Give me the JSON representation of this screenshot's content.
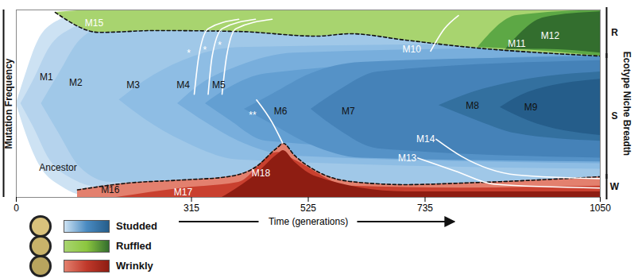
{
  "chart_data": {
    "type": "muller",
    "x_label": "Time (generations)",
    "y_label": "Mutation Frequency",
    "xlim": [
      0,
      1050
    ],
    "ylim": [
      0,
      1
    ],
    "xticks": [
      0,
      315,
      525,
      735,
      1050
    ],
    "tick_labels": "x",
    "legend": "bottom-left",
    "series": [
      {
        "name": "Studded",
        "color": "#4a8bc2",
        "layers": [
          {
            "label": "Ancestor",
            "color": "#cde2f3",
            "x": [
              0,
              15,
              40,
              80,
              140,
              1050
            ],
            "lower": [
              0.5,
              0.36,
              0.18,
              0.06,
              0,
              0
            ],
            "upper": [
              0.5,
              0.64,
              0.84,
              0.95,
              1,
              1
            ],
            "label_at": [
              75,
              0.16
            ],
            "label_color": "#111111"
          },
          {
            "label": "M1",
            "color": "#b5d3ed",
            "x": [
              8,
              30,
              60,
              100,
              160,
              1050
            ],
            "lower": [
              0.5,
              0.38,
              0.2,
              0.1,
              0.05,
              0.04
            ],
            "upper": [
              0.5,
              0.62,
              0.8,
              0.9,
              0.95,
              0.96
            ],
            "label_at": [
              54,
              0.64
            ],
            "label_color": "#111111"
          },
          {
            "label": "M2",
            "color": "#a0c8e8",
            "x": [
              45,
              75,
              115,
              170,
              1050
            ],
            "lower": [
              0.5,
              0.35,
              0.16,
              0.08,
              0.06
            ],
            "upper": [
              0.5,
              0.65,
              0.84,
              0.92,
              0.94
            ],
            "label_at": [
              107,
              0.61
            ],
            "label_color": "#111111"
          },
          {
            "label": "M3",
            "color": "#8ebde4",
            "x": [
              185,
              230,
              300,
              400,
              1050
            ],
            "lower": [
              0.52,
              0.42,
              0.3,
              0.2,
              0.15
            ],
            "upper": [
              0.52,
              0.62,
              0.73,
              0.8,
              0.82
            ],
            "label_at": [
              210,
              0.6
            ],
            "label_color": "#111111"
          },
          {
            "label": "M4",
            "color": "#78aedc",
            "x": [
              290,
              330,
              400,
              500,
              1050
            ],
            "lower": [
              0.5,
              0.42,
              0.3,
              0.22,
              0.18
            ],
            "upper": [
              0.5,
              0.6,
              0.7,
              0.77,
              0.8
            ],
            "label_at": [
              300,
              0.6
            ],
            "label_color": "#111111"
          },
          {
            "label": "M5",
            "color": "#639fd2",
            "x": [
              340,
              380,
              450,
              1050
            ],
            "lower": [
              0.5,
              0.42,
              0.3,
              0.22
            ],
            "upper": [
              0.5,
              0.58,
              0.66,
              0.76
            ],
            "label_at": [
              364,
              0.6
            ],
            "label_color": "#111111"
          },
          {
            "label": "M6",
            "color": "#5592c7",
            "x": [
              410,
              460,
              530,
              620,
              1050
            ],
            "lower": [
              0.47,
              0.39,
              0.28,
              0.21,
              0.19
            ],
            "upper": [
              0.47,
              0.55,
              0.66,
              0.72,
              0.75
            ],
            "label_at": [
              475,
              0.46
            ],
            "label_color": "#111111"
          },
          {
            "label": "M7",
            "color": "#4582b8",
            "x": [
              530,
              580,
              650,
              1050
            ],
            "lower": [
              0.47,
              0.36,
              0.26,
              0.21
            ],
            "upper": [
              0.47,
              0.57,
              0.67,
              0.73
            ],
            "label_at": [
              597,
              0.46
            ],
            "label_color": "#111111"
          },
          {
            "label": "M8",
            "color": "#33709f",
            "x": [
              760,
              820,
              900,
              1050
            ],
            "lower": [
              0.49,
              0.42,
              0.34,
              0.3
            ],
            "upper": [
              0.49,
              0.56,
              0.62,
              0.67
            ],
            "label_at": [
              820,
              0.49
            ],
            "label_color": "#111111"
          },
          {
            "label": "M9",
            "color": "#255d8a",
            "x": [
              870,
              920,
              1050
            ],
            "lower": [
              0.48,
              0.41,
              0.33
            ],
            "upper": [
              0.48,
              0.56,
              0.63
            ],
            "label_at": [
              925,
              0.48
            ],
            "label_color": "#111111"
          }
        ]
      },
      {
        "name": "Ruffled",
        "color": "#8cc63f",
        "line_style": "dashed",
        "layers": [
          {
            "label": "M15",
            "color": "#a8d46f",
            "x": [
              70,
              150,
              250,
              400,
              540,
              600,
              700,
              800,
              1050
            ],
            "lower": [
              0.987,
              0.88,
              0.89,
              0.885,
              0.86,
              0.873,
              0.839,
              0.805,
              0.754
            ],
            "upper": [
              0.987,
              1,
              1,
              1,
              1,
              1,
              1,
              1,
              1
            ],
            "label_at": [
              140,
              0.93
            ],
            "label_color": "#ffffff"
          },
          {
            "label": "M11",
            "color": "#5da845",
            "x": [
              830,
              900,
              1050
            ],
            "lower": [
              0.8,
              0.79,
              0.754
            ],
            "upper": [
              0.8,
              0.97,
              1
            ],
            "label_at": [
              900,
              0.82
            ],
            "label_color": "#ffffff"
          },
          {
            "label": "M12",
            "color": "#336e2e",
            "x": [
              880,
              950,
              1050
            ],
            "lower": [
              0.79,
              0.79,
              0.77
            ],
            "upper": [
              0.79,
              0.96,
              0.99
            ],
            "label_at": [
              960,
              0.86
            ],
            "label_color": "#ffffff"
          }
        ]
      },
      {
        "name": "Wrinkly",
        "color": "#c0392b",
        "line_style": "dashed",
        "layers": [
          {
            "label": "M16",
            "color": "#e3806e",
            "x": [
              110,
              200,
              300,
              380,
              430,
              470,
              480,
              500,
              540,
              600,
              700,
              800,
              1050
            ],
            "lower": [
              0,
              0,
              0,
              0,
              0,
              0,
              0,
              0,
              0,
              0,
              0,
              0,
              0
            ],
            "upper": [
              0.04,
              0.076,
              0.093,
              0.11,
              0.161,
              0.267,
              0.288,
              0.225,
              0.14,
              0.085,
              0.068,
              0.076,
              0.11
            ],
            "label_at": [
              169,
              0.04
            ],
            "label_color": "#111111"
          },
          {
            "label": "M17",
            "color": "#c9402f",
            "x": [
              180,
              300,
              400,
              470,
              500,
              600,
              800,
              1050
            ],
            "lower": [
              0,
              0,
              0,
              0,
              0,
              0,
              0,
              0
            ],
            "upper": [
              0,
              0.05,
              0.08,
              0.24,
              0.2,
              0.06,
              0.05,
              0.06
            ],
            "label_at": [
              300,
              0.025
            ],
            "label_color": "#ffffff"
          },
          {
            "label": "M18",
            "color": "#8e1d12",
            "x": [
              370,
              430,
              470,
              480,
              500,
              540,
              700,
              1050
            ],
            "lower": [
              0,
              0,
              0,
              0,
              0,
              0,
              0,
              0
            ],
            "upper": [
              0,
              0.12,
              0.23,
              0.25,
              0.19,
              0.11,
              0.03,
              0.03
            ],
            "label_at": [
              440,
              0.13
            ],
            "label_color": "#ffffff"
          }
        ]
      }
    ],
    "annotations": [
      {
        "text": "M10",
        "at": [
          711,
          0.79
        ],
        "color": "#ffffff",
        "path_x": [
          745,
          770,
          795
        ],
        "path_y": [
          0.78,
          0.9,
          0.97
        ]
      },
      {
        "text": "M13",
        "at": [
          703,
          0.21
        ],
        "color": "#ffffff",
        "path_x": [
          722,
          790,
          860,
          1050
        ],
        "path_y": [
          0.21,
          0.14,
          0.07,
          0.05
        ]
      },
      {
        "text": "M14",
        "at": [
          736,
          0.31
        ],
        "color": "#ffffff",
        "path_x": [
          755,
          800,
          900,
          1050
        ],
        "path_y": [
          0.31,
          0.22,
          0.12,
          0.1
        ]
      },
      {
        "text": "*",
        "at": [
          310,
          0.767
        ],
        "color": "#ffffff",
        "path_x": [
          320,
          328,
          345,
          400
        ],
        "path_y": [
          0.55,
          0.75,
          0.9,
          0.95
        ]
      },
      {
        "text": "*",
        "at": [
          339,
          0.784
        ],
        "color": "#ffffff",
        "path_x": [
          345,
          352,
          370,
          430
        ],
        "path_y": [
          0.55,
          0.75,
          0.9,
          0.95
        ]
      },
      {
        "text": "*",
        "at": [
          366,
          0.809
        ],
        "color": "#ffffff",
        "path_x": [
          370,
          378,
          395,
          460
        ],
        "path_y": [
          0.55,
          0.75,
          0.9,
          0.95
        ]
      },
      {
        "text": "**",
        "at": [
          425,
          0.44
        ],
        "color": "#ffffff",
        "path_x": [
          432,
          460,
          479
        ],
        "path_y": [
          0.52,
          0.4,
          0.29
        ]
      }
    ],
    "niche_breadth": {
      "label": "Ecotype Niche Breadth",
      "groups": [
        {
          "label": "R",
          "from": 0.754,
          "to": 1
        },
        {
          "label": "S",
          "from": 0.11,
          "to": 0.754
        },
        {
          "label": "W",
          "from": 0,
          "to": 0.11
        }
      ]
    }
  }
}
